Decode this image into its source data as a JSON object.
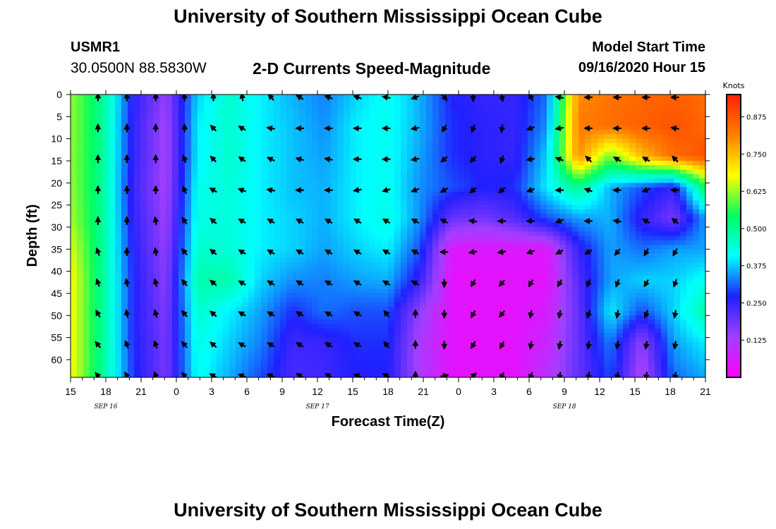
{
  "header": {
    "title": "University of Southern Mississippi Ocean Cube",
    "station_id": "USMR1",
    "station_coords": "30.0500N 88.5830W",
    "model_start_label": "Model Start Time",
    "model_start_time": "09/16/2020 Hour 15"
  },
  "footer": {
    "title": "University of Southern Mississippi Ocean Cube"
  },
  "chart_data": {
    "type": "heatmap",
    "title": "2-D Currents Speed-Magnitude",
    "xlabel": "Forecast Time(Z)",
    "ylabel": "Depth (ft)",
    "x_tick_labels": [
      "15",
      "18",
      "21",
      "0",
      "3",
      "6",
      "9",
      "12",
      "15",
      "18",
      "21",
      "0",
      "3",
      "6",
      "9",
      "12",
      "15",
      "18",
      "21"
    ],
    "date_labels": [
      {
        "label": "SEP 16",
        "tick": 1
      },
      {
        "label": "SEP 17",
        "tick": 7
      },
      {
        "label": "SEP 18",
        "tick": 14
      }
    ],
    "y_ticks": [
      0,
      5,
      10,
      15,
      20,
      25,
      30,
      35,
      40,
      45,
      50,
      55,
      60
    ],
    "ylim": [
      0,
      64
    ],
    "colorbar": {
      "label": "Knots",
      "ticks": [
        "0.125",
        "0.250",
        "0.375",
        "0.500",
        "0.625",
        "0.750",
        "0.875"
      ],
      "range": [
        0,
        0.95
      ],
      "colors": [
        "#ff00ff",
        "#a040ff",
        "#2020ff",
        "#00ffff",
        "#00ff60",
        "#ffff00",
        "#ff8000",
        "#ff2000"
      ]
    },
    "grid_depths": [
      0,
      7,
      14,
      21,
      28,
      35,
      42,
      49,
      56,
      63
    ],
    "speed_grid": [
      [
        0.62,
        0.5,
        0.26,
        0.15,
        0.38,
        0.45,
        0.4,
        0.36,
        0.33,
        0.38,
        0.42,
        0.36,
        0.27,
        0.25,
        0.25,
        0.32,
        0.8,
        0.83,
        0.85,
        0.86,
        0.84
      ],
      [
        0.62,
        0.5,
        0.25,
        0.13,
        0.4,
        0.45,
        0.4,
        0.37,
        0.34,
        0.4,
        0.42,
        0.36,
        0.28,
        0.26,
        0.25,
        0.34,
        0.82,
        0.84,
        0.86,
        0.88,
        0.85
      ],
      [
        0.62,
        0.5,
        0.25,
        0.13,
        0.4,
        0.45,
        0.4,
        0.37,
        0.35,
        0.4,
        0.42,
        0.35,
        0.28,
        0.26,
        0.25,
        0.38,
        0.8,
        0.6,
        0.75,
        0.84,
        0.88
      ],
      [
        0.62,
        0.5,
        0.24,
        0.13,
        0.42,
        0.44,
        0.4,
        0.37,
        0.36,
        0.4,
        0.42,
        0.34,
        0.3,
        0.27,
        0.28,
        0.4,
        0.5,
        0.36,
        0.3,
        0.25,
        0.55
      ],
      [
        0.63,
        0.5,
        0.25,
        0.14,
        0.43,
        0.44,
        0.4,
        0.38,
        0.36,
        0.4,
        0.43,
        0.34,
        0.2,
        0.18,
        0.22,
        0.3,
        0.35,
        0.36,
        0.25,
        0.18,
        0.35
      ],
      [
        0.66,
        0.5,
        0.26,
        0.15,
        0.45,
        0.44,
        0.4,
        0.38,
        0.35,
        0.38,
        0.4,
        0.3,
        0.05,
        0.05,
        0.05,
        0.05,
        0.25,
        0.35,
        0.32,
        0.35,
        0.35
      ],
      [
        0.68,
        0.5,
        0.27,
        0.16,
        0.48,
        0.48,
        0.38,
        0.34,
        0.33,
        0.35,
        0.36,
        0.25,
        0.04,
        0.04,
        0.04,
        0.04,
        0.22,
        0.35,
        0.38,
        0.38,
        0.42
      ],
      [
        0.68,
        0.5,
        0.27,
        0.17,
        0.45,
        0.4,
        0.35,
        0.28,
        0.32,
        0.3,
        0.3,
        0.15,
        0.04,
        0.04,
        0.04,
        0.06,
        0.2,
        0.4,
        0.3,
        0.38,
        0.48
      ],
      [
        0.68,
        0.5,
        0.27,
        0.18,
        0.43,
        0.38,
        0.33,
        0.24,
        0.25,
        0.28,
        0.28,
        0.12,
        0.04,
        0.04,
        0.04,
        0.08,
        0.2,
        0.33,
        0.15,
        0.35,
        0.4
      ],
      [
        0.68,
        0.5,
        0.28,
        0.18,
        0.42,
        0.36,
        0.3,
        0.23,
        0.24,
        0.27,
        0.27,
        0.12,
        0.04,
        0.04,
        0.04,
        0.1,
        0.2,
        0.3,
        0.12,
        0.32,
        0.36
      ]
    ],
    "vector_directions_deg": [
      [
        0,
        0,
        0,
        0,
        0,
        -10,
        -40,
        -60,
        -70,
        -70,
        -80,
        -110,
        140,
        180,
        170,
        -30,
        -80,
        -90,
        -90,
        -90,
        -90
      ],
      [
        0,
        0,
        0,
        0,
        -45,
        -60,
        -80,
        -90,
        -90,
        -90,
        -90,
        -100,
        -150,
        -160,
        -170,
        -110,
        -100,
        -90,
        -90,
        -90,
        -80
      ],
      [
        0,
        0,
        0,
        -20,
        -45,
        -55,
        -65,
        -75,
        -80,
        -90,
        -90,
        -100,
        -130,
        -140,
        -160,
        -100,
        -70,
        -45,
        -60,
        -60,
        -45
      ],
      [
        0,
        0,
        0,
        -25,
        -60,
        -70,
        -80,
        -90,
        -90,
        -100,
        -105,
        -110,
        -120,
        -130,
        -130,
        -110,
        -90,
        -70,
        -90,
        -110,
        -90
      ],
      [
        0,
        0,
        -10,
        -35,
        -50,
        -60,
        -60,
        -60,
        -60,
        -60,
        -60,
        -60,
        -60,
        -80,
        -90,
        -90,
        -110,
        -90,
        -80,
        -60,
        -50
      ],
      [
        -20,
        0,
        -10,
        -40,
        -50,
        -60,
        -60,
        -60,
        -60,
        -60,
        -60,
        -60,
        -90,
        -100,
        -100,
        -110,
        -120,
        -120,
        -140,
        -150,
        -150
      ],
      [
        -20,
        -10,
        -15,
        -40,
        -50,
        -60,
        -60,
        -60,
        -60,
        -60,
        -60,
        -60,
        180,
        -150,
        -140,
        -150,
        -150,
        -160,
        -160,
        -150,
        -160
      ],
      [
        -30,
        -10,
        -15,
        -40,
        -50,
        -60,
        -60,
        -60,
        -60,
        -60,
        -40,
        0,
        180,
        -150,
        -140,
        -170,
        -170,
        -160,
        -170,
        -160,
        -170
      ],
      [
        -40,
        -20,
        -20,
        -40,
        -50,
        -60,
        -60,
        -60,
        -60,
        -60,
        -40,
        0,
        180,
        -150,
        -150,
        -170,
        -170,
        -170,
        -170,
        -170,
        -170
      ],
      [
        -40,
        -30,
        -20,
        -40,
        -60,
        -70,
        -70,
        -60,
        -60,
        -70,
        -60,
        0,
        80,
        50,
        -150,
        -160,
        -170,
        -170,
        -170,
        -170,
        -170
      ]
    ]
  }
}
